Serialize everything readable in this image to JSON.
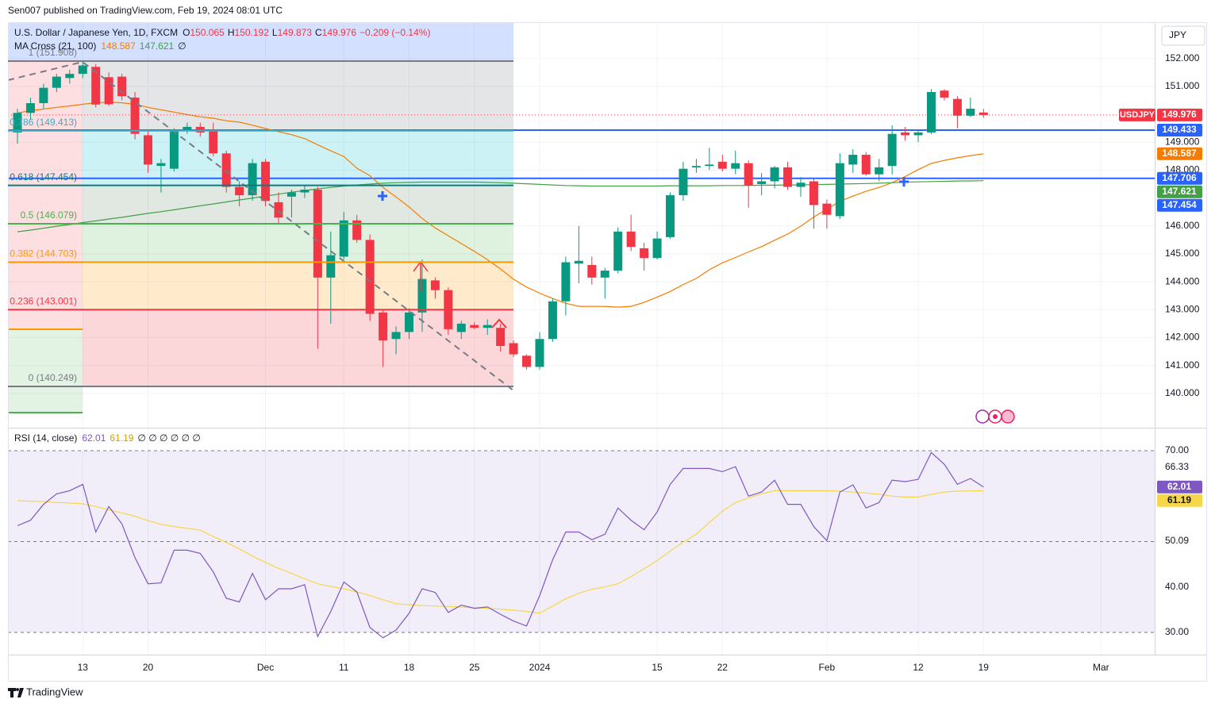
{
  "chart_data": {
    "type": "candlestick",
    "publisher": "Sen007 published on TradingView.com, Feb 19, 2024 08:01 UTC",
    "title": "U.S. Dollar / Japanese Yen, 1D, FXCM",
    "symbol": "USDJPY",
    "currency": "JPY",
    "brand": "TradingView",
    "ohlc": [
      {
        "label": "O",
        "value": 150.065
      },
      {
        "label": "H",
        "value": 150.192
      },
      {
        "label": "L",
        "value": 149.873
      },
      {
        "label": "C",
        "value": 149.976
      }
    ],
    "change": "−0.209 (−0.14%)",
    "up_color": "#089981",
    "down_color": "#f23645",
    "candles": {
      "open": [
        149.35,
        150.05,
        150.4,
        150.95,
        151.3,
        151.45,
        151.7,
        151.33,
        151.35,
        150.6,
        149.25,
        148.15,
        148.05,
        149.45,
        149.55,
        149.4,
        148.6,
        147.4,
        147.1,
        148.3,
        146.85,
        147.05,
        147.2,
        147.3,
        144.15,
        144.9,
        146.2,
        145.5,
        142.9,
        141.95,
        142.2,
        142.9,
        144.05,
        143.7,
        142.2,
        142.45,
        142.35,
        142.35,
        141.8,
        141.35,
        140.95,
        141.95,
        143.3,
        144.65,
        144.6,
        144.15,
        144.4,
        145.8,
        145.2,
        144.85,
        145.6,
        147.1,
        148.1,
        148.15,
        148.3,
        148.05,
        148.25,
        147.5,
        147.6,
        148.1,
        147.4,
        147.6,
        146.8,
        146.35,
        148.2,
        148.55,
        147.85,
        148.15,
        149.35,
        149.25,
        149.35,
        150.85,
        150.55,
        149.95,
        150.065
      ],
      "high": [
        150.2,
        150.6,
        151.1,
        151.45,
        151.6,
        151.9,
        151.8,
        151.5,
        151.45,
        150.8,
        149.4,
        148.4,
        149.5,
        149.7,
        149.7,
        149.7,
        148.7,
        147.6,
        148.4,
        148.4,
        147.2,
        147.3,
        147.45,
        147.4,
        145.8,
        146.5,
        146.4,
        145.7,
        143.0,
        142.4,
        143.05,
        144.8,
        144.15,
        143.8,
        142.6,
        142.55,
        142.65,
        142.5,
        141.9,
        141.4,
        142.2,
        143.4,
        144.9,
        146.0,
        144.9,
        144.5,
        145.95,
        146.4,
        145.4,
        145.8,
        147.2,
        148.3,
        148.4,
        148.8,
        148.55,
        148.7,
        148.35,
        147.9,
        148.15,
        148.3,
        147.75,
        147.7,
        146.95,
        148.6,
        148.75,
        148.65,
        148.4,
        149.6,
        149.55,
        149.45,
        150.9,
        150.9,
        150.65,
        150.6,
        150.192
      ],
      "low": [
        148.95,
        149.8,
        150.2,
        150.8,
        151.1,
        151.3,
        150.25,
        150.3,
        150.5,
        149.1,
        147.9,
        147.2,
        147.95,
        149.3,
        149.2,
        148.5,
        147.2,
        146.7,
        146.9,
        146.7,
        146.1,
        146.3,
        147.0,
        141.6,
        142.5,
        144.8,
        145.4,
        142.6,
        140.95,
        141.4,
        141.95,
        142.2,
        143.4,
        142.1,
        141.95,
        142.3,
        142.1,
        141.5,
        141.3,
        140.85,
        140.85,
        141.85,
        142.8,
        143.95,
        143.9,
        143.4,
        144.3,
        145.1,
        144.4,
        144.8,
        145.55,
        146.9,
        147.9,
        148.0,
        147.95,
        147.85,
        146.65,
        147.1,
        147.35,
        147.3,
        147.05,
        145.9,
        145.9,
        146.25,
        147.9,
        147.8,
        147.6,
        147.85,
        149.05,
        149.0,
        149.3,
        150.5,
        149.5,
        149.9,
        149.873
      ],
      "close": [
        150.05,
        150.4,
        150.95,
        151.35,
        151.45,
        151.75,
        150.35,
        150.36,
        150.65,
        149.3,
        148.2,
        148.25,
        149.45,
        149.55,
        149.35,
        148.6,
        147.4,
        147.1,
        148.25,
        146.9,
        146.3,
        147.2,
        147.3,
        144.15,
        144.95,
        146.2,
        145.5,
        142.85,
        141.9,
        142.2,
        142.9,
        144.1,
        143.7,
        142.3,
        142.5,
        142.35,
        142.45,
        141.7,
        141.4,
        140.95,
        141.95,
        143.3,
        144.7,
        144.75,
        144.15,
        144.4,
        145.8,
        145.25,
        144.85,
        145.55,
        147.1,
        148.05,
        148.15,
        148.2,
        148.05,
        148.25,
        147.45,
        147.6,
        148.1,
        147.4,
        147.55,
        146.75,
        146.4,
        148.25,
        148.55,
        147.85,
        148.1,
        149.3,
        149.25,
        149.35,
        150.8,
        150.6,
        149.95,
        150.2,
        149.976
      ]
    },
    "ma": {
      "name": "MA Cross (21, 100)",
      "extra": "∅",
      "lines": [
        {
          "color": "#f57c00",
          "values": [
            150.05,
            150.13,
            150.19,
            150.25,
            150.3,
            150.36,
            150.41,
            150.44,
            150.41,
            150.36,
            150.25,
            150.16,
            150.08,
            149.99,
            149.91,
            149.86,
            149.77,
            149.72,
            149.61,
            149.49,
            149.38,
            149.27,
            149.13,
            148.91,
            148.69,
            148.49,
            148.07,
            147.8,
            147.38,
            147.04,
            146.68,
            146.27,
            145.93,
            145.65,
            145.37,
            145.09,
            144.79,
            144.46,
            144.09,
            143.81,
            143.59,
            143.4,
            143.23,
            143.12,
            143.12,
            143.12,
            143.09,
            143.12,
            143.26,
            143.45,
            143.65,
            143.9,
            144.12,
            144.43,
            144.68,
            144.87,
            145.07,
            145.26,
            145.49,
            145.71,
            145.99,
            146.32,
            146.6,
            146.88,
            147.07,
            147.24,
            147.38,
            147.55,
            147.77,
            148.02,
            148.24,
            148.35,
            148.44,
            148.52,
            148.587
          ]
        },
        {
          "color": "#43a047",
          "values": [
            145.79,
            145.85,
            145.92,
            145.99,
            146.05,
            146.12,
            146.18,
            146.25,
            146.31,
            146.38,
            146.45,
            146.51,
            146.58,
            146.65,
            146.72,
            146.79,
            146.86,
            146.93,
            147.0,
            147.07,
            147.14,
            147.21,
            147.27,
            147.33,
            147.38,
            147.43,
            147.47,
            147.5,
            147.53,
            147.55,
            147.56,
            147.57,
            147.57,
            147.57,
            147.57,
            147.57,
            147.56,
            147.55,
            147.53,
            147.51,
            147.49,
            147.47,
            147.45,
            147.44,
            147.43,
            147.43,
            147.43,
            147.43,
            147.43,
            147.43,
            147.44,
            147.44,
            147.44,
            147.44,
            147.45,
            147.45,
            147.45,
            147.46,
            147.46,
            147.47,
            147.47,
            147.48,
            147.49,
            147.5,
            147.51,
            147.52,
            147.53,
            147.55,
            147.57,
            147.58,
            147.59,
            147.6,
            147.61,
            147.615,
            147.621
          ]
        }
      ]
    },
    "hlines": [
      {
        "value": 149.433,
        "color": "#2962ff"
      },
      {
        "value": 147.706,
        "color": "#2962ff"
      }
    ],
    "fib": {
      "levels": [
        {
          "value": 151.908,
          "label": "1 (151.908)",
          "color": "#787b86",
          "fill": "rgba(120,123,134,0.2)"
        },
        {
          "value": 149.413,
          "label": "0.786 (149.413)",
          "color": "#40a9c8",
          "fill": "rgba(0,188,212,0.2)"
        },
        {
          "value": 147.454,
          "label": "0.618 (147.454)",
          "color": "#0c7c80",
          "fill": "rgba(120,150,120,0.22)"
        },
        {
          "value": 146.079,
          "label": "0.5 (146.079)",
          "color": "#4caf50",
          "fill": "rgba(76,175,80,0.18)"
        },
        {
          "value": 144.703,
          "label": "0.382 (144.703)",
          "color": "#ff9800",
          "fill": "rgba(255,152,0,0.2)"
        },
        {
          "value": 143.001,
          "label": "0.236 (143.001)",
          "color": "#f23645",
          "fill": "rgba(242,54,69,0.2)"
        },
        {
          "value": 140.249,
          "label": "0 (140.249)",
          "color": "#787b86"
        }
      ]
    },
    "ylim": [
      138.8,
      153.3
    ],
    "yticks": [
      {
        "value": 152,
        "label": "152.000"
      },
      {
        "value": 151,
        "label": "151.000"
      },
      {
        "value": 149,
        "label": "149.000"
      },
      {
        "value": 148,
        "label": "148.000"
      },
      {
        "value": 146,
        "label": "146.000"
      },
      {
        "value": 145,
        "label": "145.000"
      },
      {
        "value": 144,
        "label": "144.000"
      },
      {
        "value": 143,
        "label": "143.000"
      },
      {
        "value": 142,
        "label": "142.000"
      },
      {
        "value": 141,
        "label": "141.000"
      },
      {
        "value": 140,
        "label": "140.000"
      }
    ],
    "xticks": [
      {
        "value": 5,
        "label": "13"
      },
      {
        "value": 10,
        "label": "20"
      },
      {
        "value": 19,
        "label": "Dec"
      },
      {
        "value": 25,
        "label": "11"
      },
      {
        "value": 30,
        "label": "18"
      },
      {
        "value": 35,
        "label": "25"
      },
      {
        "value": 40,
        "label": "2024"
      },
      {
        "value": 49,
        "label": "15"
      },
      {
        "value": 54,
        "label": "22"
      },
      {
        "value": 62,
        "label": "Feb"
      },
      {
        "value": 69,
        "label": "12"
      },
      {
        "value": 74,
        "label": "19"
      },
      {
        "value": 83,
        "label": "Mar"
      }
    ],
    "rsi": {
      "name": "RSI (14, close)",
      "extra": "∅ ∅ ∅ ∅ ∅ ∅",
      "ylim": [
        25.1,
        74.9
      ],
      "yticks": [
        {
          "value": 70,
          "label": "70.00"
        },
        66.33,
        50.09,
        {
          "value": 40,
          "label": "40.00"
        },
        {
          "value": 30,
          "label": "30.00"
        }
      ],
      "levels": [
        70,
        50,
        30
      ],
      "series": [
        {
          "color": "#7e57c2",
          "values": [
            53.5,
            54.7,
            58.2,
            60.5,
            61.2,
            62.6,
            52.1,
            57.7,
            53.9,
            46.5,
            40.7,
            40.9,
            48.1,
            48.1,
            47.4,
            43.3,
            37.5,
            36.7,
            43.0,
            37.2,
            39.6,
            39.6,
            40.5,
            29.1,
            34.6,
            41.1,
            38.9,
            31.1,
            28.8,
            30.5,
            34.2,
            39.6,
            38.8,
            34.4,
            36.0,
            35.3,
            35.6,
            34.0,
            32.5,
            31.4,
            38.1,
            46.0,
            52.1,
            52.1,
            50.4,
            51.6,
            57.4,
            54.7,
            52.6,
            56.5,
            62.6,
            66.1,
            66.1,
            66.1,
            65.4,
            66.5,
            60.0,
            60.9,
            63.5,
            58.2,
            58.2,
            53.3,
            50.2,
            60.9,
            62.5,
            57.4,
            58.6,
            63.5,
            63.2,
            63.7,
            69.6,
            67.0,
            62.6,
            63.9,
            62.01
          ]
        },
        {
          "color": "#f7d64a",
          "values": [
            59.0,
            58.9,
            58.8,
            58.6,
            58.5,
            58.3,
            57.7,
            57.0,
            56.3,
            55.6,
            54.6,
            53.8,
            53.3,
            52.9,
            52.5,
            51.1,
            49.8,
            48.4,
            46.8,
            45.4,
            44.1,
            43.0,
            41.8,
            40.7,
            40.1,
            39.6,
            38.9,
            38.1,
            37.2,
            36.3,
            36.1,
            35.9,
            35.8,
            35.7,
            35.6,
            35.4,
            35.3,
            35.1,
            34.9,
            34.6,
            34.2,
            35.8,
            37.4,
            38.6,
            39.5,
            40.0,
            40.7,
            42.3,
            44.0,
            45.8,
            47.9,
            49.9,
            51.6,
            54.2,
            56.7,
            58.6,
            59.6,
            60.5,
            61.2,
            61.2,
            61.2,
            61.2,
            61.2,
            61.1,
            60.9,
            60.7,
            60.4,
            60.0,
            59.8,
            59.8,
            60.4,
            60.9,
            61.1,
            61.14,
            61.19
          ]
        }
      ]
    }
  }
}
